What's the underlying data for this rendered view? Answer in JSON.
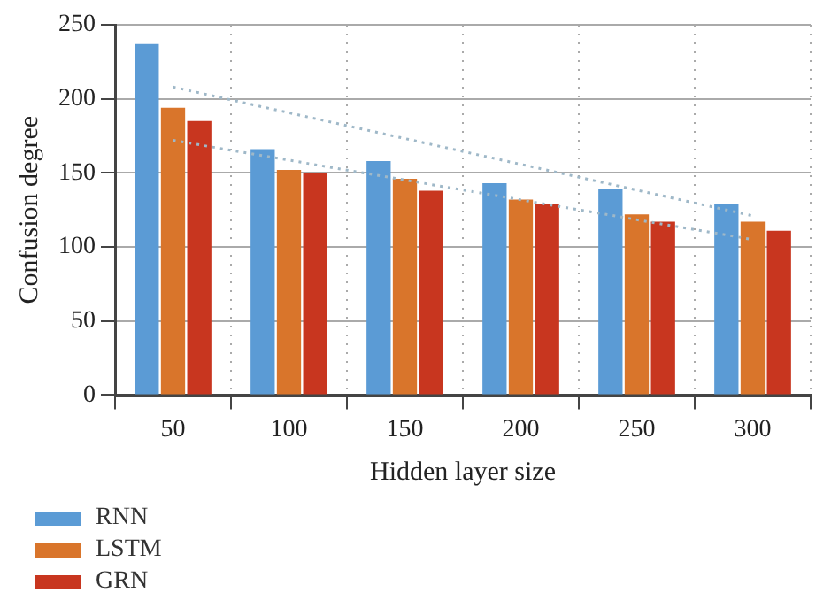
{
  "chart_data": {
    "type": "bar",
    "xlabel": "Hidden layer size",
    "ylabel": "Confusion degree",
    "categories": [
      "50",
      "100",
      "150",
      "200",
      "250",
      "300"
    ],
    "series": [
      {
        "name": "RNN",
        "color": "#5b9bd5",
        "values": [
          237,
          166,
          158,
          143,
          139,
          129
        ]
      },
      {
        "name": "LSTM",
        "color": "#d9752b",
        "values": [
          194,
          152,
          146,
          132,
          122,
          117
        ]
      },
      {
        "name": "GRN",
        "color": "#c8361f",
        "values": [
          185,
          150,
          138,
          129,
          117,
          111
        ]
      },
      {
        "type": "line",
        "color": "#9fb8c8",
        "line_style": "dotted",
        "x": [
          "50",
          "300"
        ],
        "values": [
          208,
          121
        ]
      },
      {
        "type": "line",
        "color": "#9fb8c8",
        "line_style": "dotted",
        "x": [
          "50",
          "300"
        ],
        "values": [
          172,
          105
        ]
      }
    ],
    "ylim": [
      0,
      250
    ],
    "yticks": [
      0,
      50,
      100,
      150,
      200,
      250
    ],
    "grid": true,
    "legend": "bottom left",
    "marker": "none"
  }
}
